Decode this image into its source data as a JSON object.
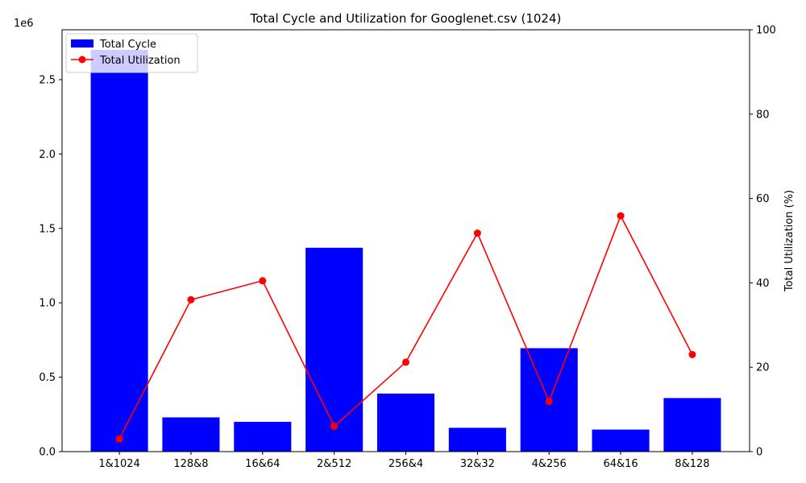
{
  "chart_data": {
    "type": "bar+line",
    "title": "Total Cycle and Utilization for Googlenet.csv (1024)",
    "categories": [
      "1&1024",
      "128&8",
      "16&64",
      "2&512",
      "256&4",
      "32&32",
      "4&256",
      "64&16",
      "8&128"
    ],
    "series": [
      {
        "name": "Total Cycle",
        "type": "bar",
        "axis": "left",
        "color": "#0000ff",
        "values": [
          2700000,
          230000,
          200000,
          1370000,
          390000,
          160000,
          695000,
          148000,
          360000
        ]
      },
      {
        "name": "Total Utilization",
        "type": "line",
        "axis": "right",
        "color": "#ff0000",
        "values": [
          3.0,
          36.0,
          40.5,
          6.0,
          21.2,
          51.8,
          11.9,
          55.9,
          23.0
        ]
      }
    ],
    "left_axis": {
      "ylim": [
        0,
        2835000
      ],
      "ticks": [
        0,
        500000,
        1000000,
        1500000,
        2000000,
        2500000
      ],
      "tick_labels": [
        "0.0",
        "0.5",
        "1.0",
        "1.5",
        "2.0",
        "2.5"
      ],
      "offset_label": "1e6",
      "label": ""
    },
    "right_axis": {
      "ylim": [
        0,
        100
      ],
      "ticks": [
        0,
        20,
        40,
        60,
        80,
        100
      ],
      "tick_labels": [
        "0",
        "20",
        "40",
        "60",
        "80",
        "100"
      ],
      "label": "Total Utilization (%)"
    },
    "xlabel": "",
    "legend": "top-left",
    "grid": false
  }
}
